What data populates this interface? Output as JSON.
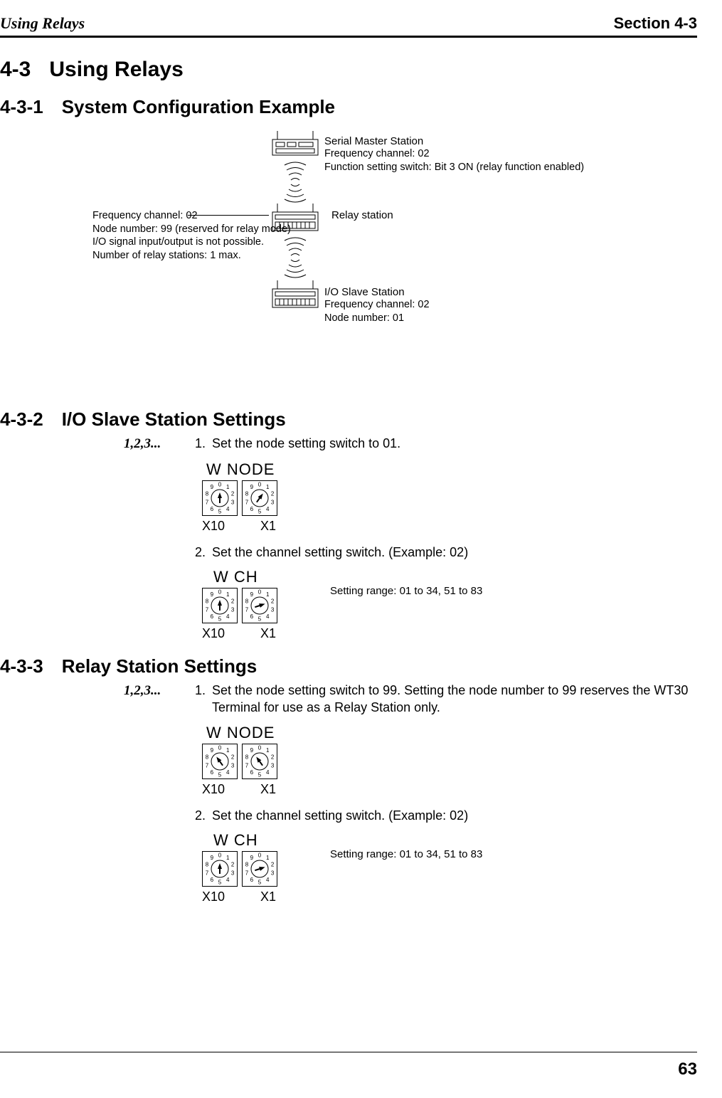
{
  "header": {
    "left": "Using Relays",
    "right": "Section 4-3"
  },
  "h1": {
    "num": "4-3",
    "title": "Using Relays"
  },
  "h2a": {
    "num": "4-3-1",
    "title": "System Configuration Example"
  },
  "h2b": {
    "num": "4-3-2",
    "title": "I/O Slave Station Settings"
  },
  "h2c": {
    "num": "4-3-3",
    "title": "Relay Station Settings"
  },
  "diagram": {
    "master": {
      "title": "Serial Master Station",
      "l1": "Frequency channel: 02",
      "l2": "Function setting switch: Bit 3 ON (relay function enabled)"
    },
    "relay": {
      "title": "Relay station",
      "left1": "Frequency channel: 02",
      "left2": "Node number: 99 (reserved for relay mode)",
      "left3": "I/O signal input/output is not possible.",
      "left4": "Number of relay stations: 1 max."
    },
    "slave": {
      "title": "I/O Slave Station",
      "l1": "Frequency channel: 02",
      "l2": "Node number: 01"
    }
  },
  "steps_marker": "1,2,3...",
  "io": {
    "s1": "Set the node setting switch to 01.",
    "s2": "Set the channel setting switch. (Example: 02)",
    "node_title": "W NODE",
    "ch_title": "W CH",
    "x10": "X10",
    "x1": "X1",
    "range": "Setting range: 01 to 34, 51 to 83",
    "node_x10_val": 0,
    "node_x1_val": 1,
    "ch_x10_val": 0,
    "ch_x1_val": 2
  },
  "relay": {
    "s1": "Set the node setting switch to 99. Setting the node number to 99 reserves the WT30 Terminal for use as a Relay Station only.",
    "s2": "Set the channel setting switch. (Example: 02)",
    "node_x10_val": 9,
    "node_x1_val": 9,
    "ch_x10_val": 0,
    "ch_x1_val": 2
  },
  "page_number": "63",
  "style": {
    "dial_digits": [
      "0",
      "1",
      "2",
      "3",
      "4",
      "5",
      "6",
      "7",
      "8",
      "9"
    ]
  }
}
